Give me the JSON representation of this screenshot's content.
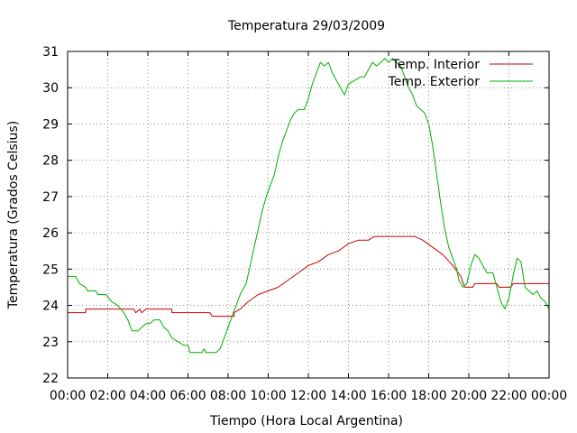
{
  "chart_data": {
    "type": "line",
    "title": "Temperatura 29/03/2009",
    "xlabel": "Tiempo (Hora Local Argentina)",
    "ylabel": "Temperatura (Grados Celsius)",
    "xlim": [
      0,
      24
    ],
    "ylim": [
      22,
      31
    ],
    "x_tick_labels": [
      "00:00",
      "02:00",
      "04:00",
      "06:00",
      "08:00",
      "10:00",
      "12:00",
      "14:00",
      "16:00",
      "18:00",
      "20:00",
      "22:00",
      "00:00"
    ],
    "y_ticks": [
      22,
      23,
      24,
      25,
      26,
      27,
      28,
      29,
      30,
      31
    ],
    "grid": true,
    "legend_position": "top-right",
    "series": [
      {
        "name": "Temp. Interior",
        "color": "#cc0000",
        "points": [
          [
            0,
            23.8
          ],
          [
            0.9,
            23.8
          ],
          [
            0.9,
            23.9
          ],
          [
            3.3,
            23.9
          ],
          [
            3.4,
            23.8
          ],
          [
            3.6,
            23.9
          ],
          [
            3.7,
            23.8
          ],
          [
            3.9,
            23.9
          ],
          [
            5.2,
            23.9
          ],
          [
            5.2,
            23.8
          ],
          [
            7.1,
            23.8
          ],
          [
            7.2,
            23.7
          ],
          [
            8.3,
            23.7
          ],
          [
            8.3,
            23.8
          ],
          [
            8.6,
            23.9
          ],
          [
            9.0,
            24.1
          ],
          [
            9.5,
            24.3
          ],
          [
            10.0,
            24.4
          ],
          [
            10.5,
            24.5
          ],
          [
            11.0,
            24.7
          ],
          [
            11.5,
            24.9
          ],
          [
            12.0,
            25.1
          ],
          [
            12.5,
            25.2
          ],
          [
            13.0,
            25.4
          ],
          [
            13.5,
            25.5
          ],
          [
            14.0,
            25.7
          ],
          [
            14.5,
            25.8
          ],
          [
            15.0,
            25.8
          ],
          [
            15.3,
            25.9
          ],
          [
            17.3,
            25.9
          ],
          [
            17.7,
            25.8
          ],
          [
            18.2,
            25.6
          ],
          [
            18.7,
            25.4
          ],
          [
            19.2,
            25.1
          ],
          [
            19.6,
            24.8
          ],
          [
            19.8,
            24.5
          ],
          [
            20.2,
            24.5
          ],
          [
            20.3,
            24.6
          ],
          [
            21.4,
            24.6
          ],
          [
            21.5,
            24.5
          ],
          [
            22.1,
            24.5
          ],
          [
            22.2,
            24.6
          ],
          [
            24,
            24.6
          ]
        ]
      },
      {
        "name": "Temp. Exterior",
        "color": "#00b000",
        "points": [
          [
            0,
            24.8
          ],
          [
            0.4,
            24.8
          ],
          [
            0.6,
            24.6
          ],
          [
            0.9,
            24.5
          ],
          [
            1.0,
            24.4
          ],
          [
            1.4,
            24.4
          ],
          [
            1.5,
            24.3
          ],
          [
            1.9,
            24.3
          ],
          [
            2.2,
            24.1
          ],
          [
            2.5,
            24.0
          ],
          [
            2.8,
            23.8
          ],
          [
            3.0,
            23.6
          ],
          [
            3.2,
            23.3
          ],
          [
            3.5,
            23.3
          ],
          [
            3.7,
            23.4
          ],
          [
            3.9,
            23.5
          ],
          [
            4.1,
            23.5
          ],
          [
            4.3,
            23.6
          ],
          [
            4.6,
            23.6
          ],
          [
            4.8,
            23.4
          ],
          [
            5.0,
            23.3
          ],
          [
            5.2,
            23.1
          ],
          [
            5.5,
            23.0
          ],
          [
            5.8,
            22.9
          ],
          [
            6.0,
            22.9
          ],
          [
            6.1,
            22.7
          ],
          [
            6.7,
            22.7
          ],
          [
            6.8,
            22.8
          ],
          [
            6.9,
            22.7
          ],
          [
            7.4,
            22.7
          ],
          [
            7.6,
            22.8
          ],
          [
            7.8,
            23.1
          ],
          [
            8.0,
            23.4
          ],
          [
            8.2,
            23.7
          ],
          [
            8.4,
            24.0
          ],
          [
            8.6,
            24.3
          ],
          [
            8.9,
            24.6
          ],
          [
            9.1,
            25.1
          ],
          [
            9.3,
            25.6
          ],
          [
            9.5,
            26.1
          ],
          [
            9.7,
            26.6
          ],
          [
            9.9,
            27.0
          ],
          [
            10.1,
            27.3
          ],
          [
            10.3,
            27.6
          ],
          [
            10.5,
            28.1
          ],
          [
            10.7,
            28.5
          ],
          [
            10.9,
            28.8
          ],
          [
            11.1,
            29.1
          ],
          [
            11.3,
            29.3
          ],
          [
            11.5,
            29.4
          ],
          [
            11.8,
            29.4
          ],
          [
            12.0,
            29.7
          ],
          [
            12.2,
            30.1
          ],
          [
            12.4,
            30.4
          ],
          [
            12.6,
            30.7
          ],
          [
            12.8,
            30.6
          ],
          [
            13.0,
            30.7
          ],
          [
            13.2,
            30.4
          ],
          [
            13.4,
            30.2
          ],
          [
            13.6,
            30.0
          ],
          [
            13.8,
            29.8
          ],
          [
            14.0,
            30.1
          ],
          [
            14.3,
            30.2
          ],
          [
            14.6,
            30.3
          ],
          [
            14.8,
            30.3
          ],
          [
            15.0,
            30.5
          ],
          [
            15.2,
            30.7
          ],
          [
            15.4,
            30.6
          ],
          [
            15.6,
            30.7
          ],
          [
            15.8,
            30.8
          ],
          [
            16.0,
            30.7
          ],
          [
            16.2,
            30.8
          ],
          [
            16.4,
            30.7
          ],
          [
            16.6,
            30.6
          ],
          [
            16.8,
            30.3
          ],
          [
            17.0,
            30.0
          ],
          [
            17.2,
            29.8
          ],
          [
            17.4,
            29.5
          ],
          [
            17.6,
            29.4
          ],
          [
            17.8,
            29.3
          ],
          [
            18.0,
            29.0
          ],
          [
            18.2,
            28.4
          ],
          [
            18.4,
            27.6
          ],
          [
            18.6,
            26.8
          ],
          [
            18.8,
            26.1
          ],
          [
            19.0,
            25.6
          ],
          [
            19.2,
            25.3
          ],
          [
            19.4,
            25.0
          ],
          [
            19.5,
            24.7
          ],
          [
            19.7,
            24.5
          ],
          [
            19.9,
            24.6
          ],
          [
            20.1,
            25.1
          ],
          [
            20.3,
            25.4
          ],
          [
            20.5,
            25.3
          ],
          [
            20.7,
            25.1
          ],
          [
            20.9,
            24.9
          ],
          [
            21.2,
            24.9
          ],
          [
            21.4,
            24.5
          ],
          [
            21.6,
            24.1
          ],
          [
            21.8,
            23.9
          ],
          [
            22.0,
            24.2
          ],
          [
            22.2,
            24.8
          ],
          [
            22.4,
            25.3
          ],
          [
            22.6,
            25.2
          ],
          [
            22.8,
            24.5
          ],
          [
            23.0,
            24.4
          ],
          [
            23.2,
            24.3
          ],
          [
            23.4,
            24.4
          ],
          [
            23.6,
            24.2
          ],
          [
            23.8,
            24.1
          ],
          [
            24.0,
            23.9
          ]
        ]
      }
    ]
  }
}
